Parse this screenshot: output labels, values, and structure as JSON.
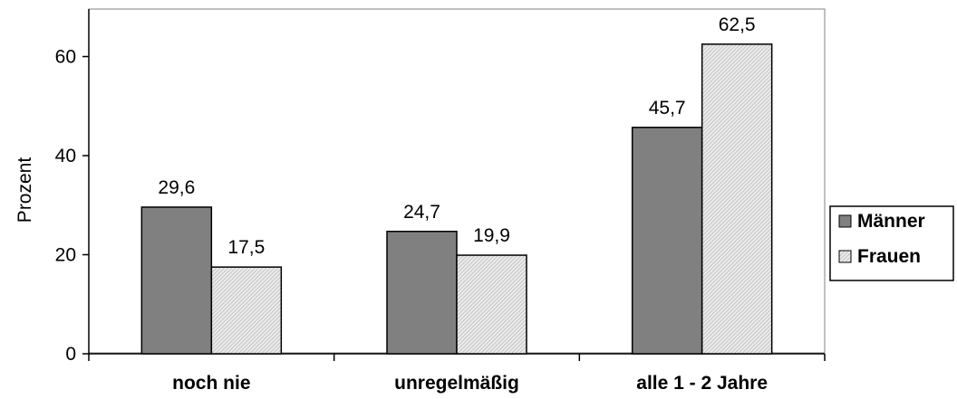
{
  "chart_data": {
    "type": "bar",
    "ylabel": "Prozent",
    "xlabel": "",
    "ylim": [
      0,
      60
    ],
    "yticks": [
      0,
      20,
      40,
      60
    ],
    "grid": false,
    "legend_position": "right",
    "categories": [
      "noch nie",
      "unregelmäßig",
      "alle 1 - 2 Jahre"
    ],
    "series": [
      {
        "name": "Männer",
        "values": [
          29.6,
          24.7,
          45.7
        ],
        "labels": [
          "29,6",
          "24,7",
          "45,7"
        ],
        "color": "#808080",
        "fill": "solid"
      },
      {
        "name": "Frauen",
        "values": [
          17.5,
          19.9,
          62.5
        ],
        "labels": [
          "17,5",
          "19,9",
          "62,5"
        ],
        "color": "#cfcfcf",
        "fill": "hatched"
      }
    ]
  }
}
